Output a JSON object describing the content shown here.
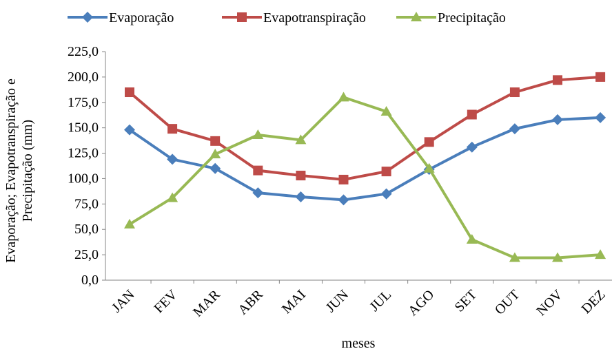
{
  "chart_data": {
    "type": "line",
    "y_label": [
      "Evaporação; Evapotranspiração e",
      "Precipitação (mm)"
    ],
    "x_label": "meses",
    "categories": [
      "JAN",
      "FEV",
      "MAR",
      "ABR",
      "MAI",
      "JUN",
      "JUL",
      "AGO",
      "SET",
      "OUT",
      "NOV",
      "DEZ"
    ],
    "series": [
      {
        "name": "Evaporação",
        "color": "#4a7ebb",
        "marker": "diamond",
        "values": [
          148,
          119,
          110,
          86,
          82,
          79,
          85,
          109,
          131,
          149,
          158,
          160
        ]
      },
      {
        "name": "Evapotranspiração",
        "color": "#be4b48",
        "marker": "square",
        "values": [
          185,
          149,
          137,
          108,
          103,
          99,
          107,
          136,
          163,
          185,
          197,
          200
        ]
      },
      {
        "name": "Precipitação",
        "color": "#98b954",
        "marker": "triangle",
        "values": [
          55,
          81,
          124,
          143,
          138,
          180,
          166,
          110,
          40,
          22,
          22,
          25
        ]
      }
    ],
    "ylim": [
      0,
      225
    ],
    "yticks": [
      {
        "value": 0,
        "label": "0,0"
      },
      {
        "value": 25,
        "label": "25,0"
      },
      {
        "value": 50,
        "label": "50,0"
      },
      {
        "value": 75,
        "label": "75,0"
      },
      {
        "value": 100,
        "label": "100,0"
      },
      {
        "value": 125,
        "label": "125,0"
      },
      {
        "value": 150,
        "label": "150,0"
      },
      {
        "value": 175,
        "label": "175,0"
      },
      {
        "value": 200,
        "label": "200,0"
      },
      {
        "value": 225,
        "label": "225,0"
      }
    ],
    "legend": "top",
    "grid": false
  }
}
